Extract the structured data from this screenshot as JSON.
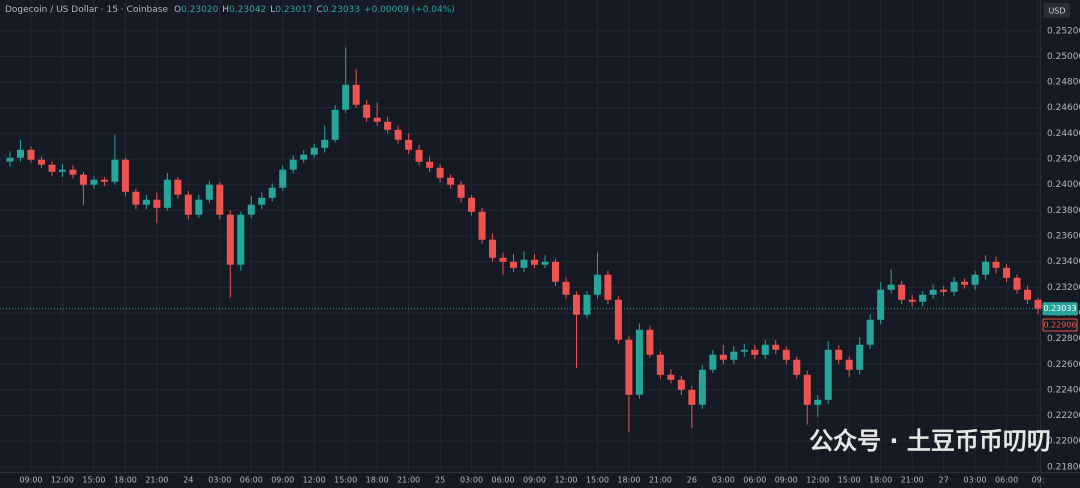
{
  "chart_data": {
    "type": "candlestick",
    "legend_title": "Dogecoin / US Dollar · 15 · Coinbase",
    "ohlc": [
      {
        "label": "O",
        "value": "0.23020"
      },
      {
        "label": "H",
        "value": "0.23042"
      },
      {
        "label": "L",
        "value": "0.23017"
      },
      {
        "label": "C",
        "value": "0.23033"
      }
    ],
    "change": "+0.00009 (+0.04%)",
    "currency": "USD",
    "watermark": "公众号 · 土豆币币叨叨",
    "up_color": "#26a69a",
    "down_color": "#ef5350",
    "grid": true,
    "categories": [
      null,
      null,
      "09:00",
      null,
      null,
      "12:00",
      null,
      null,
      "15:00",
      null,
      null,
      "18:00",
      null,
      null,
      "21:00",
      null,
      null,
      "24",
      null,
      null,
      "03:00",
      null,
      null,
      "06:00",
      null,
      null,
      "09:00",
      null,
      null,
      "12:00",
      null,
      null,
      "15:00",
      null,
      null,
      "18:00",
      null,
      null,
      "21:00",
      null,
      null,
      "25",
      null,
      null,
      "03:00",
      null,
      null,
      "06:00",
      null,
      null,
      "09:00",
      null,
      null,
      "12:00",
      null,
      null,
      "15:00",
      null,
      null,
      "18:00",
      null,
      null,
      "21:00",
      null,
      null,
      "26",
      null,
      null,
      "03:00",
      null,
      null,
      "06:00",
      null,
      null,
      "09:00",
      null,
      null,
      "12:00",
      null,
      null,
      "15:00",
      null,
      null,
      "18:00",
      null,
      null,
      "21:00",
      null,
      null,
      "27",
      null,
      null,
      "03:00",
      null,
      null,
      "06:00",
      null,
      null,
      "09:"
    ],
    "open": [
      0.2418,
      0.2421,
      0.24272,
      0.24195,
      0.24156,
      0.24101,
      0.24117,
      0.24078,
      0.24,
      0.24039,
      0.24023,
      0.24195,
      0.23945,
      0.23844,
      0.23883,
      0.2382,
      0.24039,
      0.23922,
      0.23766,
      0.23883,
      0.24,
      0.23766,
      0.23376,
      0.23766,
      0.23844,
      0.23898,
      0.23976,
      0.24117,
      0.24195,
      0.24234,
      0.24288,
      0.2435,
      0.24584,
      0.24779,
      0.24623,
      0.24522,
      0.24491,
      0.24428,
      0.2435,
      0.24272,
      0.24179,
      0.24132,
      0.24054,
      0.24,
      0.23898,
      0.23789,
      0.23571,
      0.2343,
      0.23399,
      0.23352,
      0.23415,
      0.23376,
      0.23399,
      0.23243,
      0.23142,
      0.22986,
      0.23142,
      0.23298,
      0.23103,
      0.22791,
      0.22362,
      0.22869,
      0.22674,
      0.22518,
      0.22479,
      0.22401,
      0.22284,
      0.22557,
      0.22674,
      0.22635,
      0.22698,
      0.22713,
      0.22674,
      0.22752,
      0.22713,
      0.22635,
      0.22518,
      0.22284,
      0.22323,
      0.22713,
      0.22635,
      0.22557,
      0.22752,
      0.22947,
      0.23181,
      0.2322,
      0.23103,
      0.23087,
      0.23142,
      0.23181,
      0.23165,
      0.23243,
      0.2322,
      0.23298,
      0.23399,
      0.23352,
      0.23274,
      0.23181,
      0.23103
    ],
    "high": [
      0.2426,
      0.2435,
      0.243,
      0.2422,
      0.2418,
      0.2416,
      0.2415,
      0.241,
      0.2407,
      0.2406,
      0.2439,
      0.2421,
      0.2397,
      0.2392,
      0.2394,
      0.2409,
      0.2406,
      0.2395,
      0.2392,
      0.2403,
      0.2402,
      0.238,
      0.2379,
      0.2391,
      0.2394,
      0.2401,
      0.2415,
      0.2423,
      0.2427,
      0.2432,
      0.2446,
      0.2462,
      0.2507,
      0.249,
      0.2466,
      0.2464,
      0.2453,
      0.2446,
      0.244,
      0.2431,
      0.2422,
      0.2416,
      0.2408,
      0.2403,
      0.2392,
      0.2382,
      0.2362,
      0.2347,
      0.2346,
      0.2348,
      0.2346,
      0.2345,
      0.2342,
      0.2328,
      0.2317,
      0.2317,
      0.2347,
      0.2333,
      0.2313,
      0.2282,
      0.2292,
      0.229,
      0.227,
      0.2256,
      0.2251,
      0.2243,
      0.2259,
      0.2271,
      0.2275,
      0.2274,
      0.2276,
      0.2275,
      0.2279,
      0.2279,
      0.2274,
      0.2266,
      0.2255,
      0.2236,
      0.2278,
      0.2275,
      0.2266,
      0.2281,
      0.2299,
      0.2324,
      0.2334,
      0.2325,
      0.2314,
      0.2317,
      0.2322,
      0.2321,
      0.2328,
      0.2327,
      0.2333,
      0.2345,
      0.2344,
      0.2338,
      0.233,
      0.2321,
      0.2312
    ],
    "low": [
      0.2414,
      0.2418,
      0.2417,
      0.2413,
      0.2407,
      0.2406,
      0.2405,
      0.2384,
      0.2397,
      0.2399,
      0.24,
      0.2391,
      0.2381,
      0.2381,
      0.237,
      0.238,
      0.2389,
      0.2373,
      0.2374,
      0.2386,
      0.2373,
      0.2312,
      0.2333,
      0.2374,
      0.2381,
      0.2387,
      0.2395,
      0.2409,
      0.2417,
      0.2421,
      0.2425,
      0.2433,
      0.2456,
      0.246,
      0.2449,
      0.2446,
      0.244,
      0.2432,
      0.2424,
      0.2415,
      0.241,
      0.2402,
      0.2397,
      0.2386,
      0.2376,
      0.2354,
      0.234,
      0.233,
      0.2332,
      0.2332,
      0.2335,
      0.2335,
      0.2321,
      0.2311,
      0.2257,
      0.2296,
      0.2311,
      0.2307,
      0.2276,
      0.2207,
      0.2233,
      0.2265,
      0.2249,
      0.2245,
      0.2236,
      0.221,
      0.2225,
      0.2253,
      0.226,
      0.226,
      0.2266,
      0.2264,
      0.2264,
      0.2268,
      0.226,
      0.2249,
      0.2213,
      0.2219,
      0.2229,
      0.226,
      0.225,
      0.2252,
      0.2272,
      0.2291,
      0.2315,
      0.2307,
      0.2305,
      0.2305,
      0.2311,
      0.2313,
      0.2313,
      0.2319,
      0.2318,
      0.2326,
      0.2331,
      0.2324,
      0.2315,
      0.2307,
      0.2299
    ],
    "close": [
      0.2421,
      0.24272,
      0.24195,
      0.24156,
      0.24101,
      0.24117,
      0.24078,
      0.24,
      0.24039,
      0.24023,
      0.24195,
      0.23945,
      0.23844,
      0.23883,
      0.2382,
      0.24039,
      0.23922,
      0.23766,
      0.23883,
      0.24,
      0.23766,
      0.23376,
      0.23766,
      0.23844,
      0.23898,
      0.23976,
      0.24117,
      0.24195,
      0.24234,
      0.24288,
      0.2435,
      0.24584,
      0.24779,
      0.24623,
      0.24522,
      0.24491,
      0.24428,
      0.2435,
      0.24272,
      0.24179,
      0.24132,
      0.24054,
      0.24,
      0.23898,
      0.23789,
      0.23571,
      0.2343,
      0.23399,
      0.23352,
      0.23415,
      0.23376,
      0.23399,
      0.23243,
      0.23142,
      0.22986,
      0.23142,
      0.23298,
      0.23103,
      0.22791,
      0.22362,
      0.22869,
      0.22674,
      0.22518,
      0.22479,
      0.22401,
      0.22284,
      0.22557,
      0.22674,
      0.22635,
      0.22698,
      0.22713,
      0.22674,
      0.22752,
      0.22713,
      0.22635,
      0.22518,
      0.22284,
      0.22323,
      0.22713,
      0.22635,
      0.22557,
      0.22752,
      0.22947,
      0.23181,
      0.2322,
      0.23103,
      0.23087,
      0.23142,
      0.23181,
      0.23165,
      0.23243,
      0.2322,
      0.23298,
      0.23399,
      0.23352,
      0.23274,
      0.23181,
      0.23103,
      0.23033
    ],
    "ylim": [
      0.2176,
      0.2544
    ],
    "yticks": [
      {
        "value": 0.218,
        "label": "0.21800"
      },
      {
        "value": 0.22,
        "label": "0.22000"
      },
      {
        "value": 0.222,
        "label": "0.22200"
      },
      {
        "value": 0.224,
        "label": "0.22400"
      },
      {
        "value": 0.226,
        "label": "0.22600"
      },
      {
        "value": 0.228,
        "label": "0.22800"
      },
      {
        "value": 0.23,
        "label": "0.23000"
      },
      {
        "value": 0.232,
        "label": "0.23200"
      },
      {
        "value": 0.234,
        "label": "0.23400"
      },
      {
        "value": 0.236,
        "label": "0.23600"
      },
      {
        "value": 0.238,
        "label": "0.23800"
      },
      {
        "value": 0.24,
        "label": "0.24000"
      },
      {
        "value": 0.242,
        "label": "0.24200"
      },
      {
        "value": 0.244,
        "label": "0.24400"
      },
      {
        "value": 0.246,
        "label": "0.24600"
      },
      {
        "value": 0.248,
        "label": "0.24800"
      },
      {
        "value": 0.25,
        "label": "0.25000"
      },
      {
        "value": 0.252,
        "label": "0.25200"
      }
    ],
    "price_markers": [
      {
        "value": 0.23033,
        "label": "0.23033",
        "color": "#26a69a",
        "filled": true
      },
      {
        "value": 0.22906,
        "label": "0.22906",
        "color": "#ef5350",
        "filled": false
      }
    ]
  }
}
